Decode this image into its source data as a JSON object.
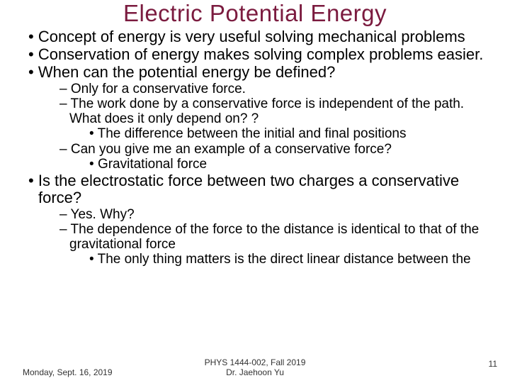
{
  "title": {
    "text": "Electric Potential Energy",
    "color": "#7b1b3f"
  },
  "bullets": {
    "b1": "Concept of energy is very useful solving mechanical problems",
    "b2": "Conservation of energy makes solving complex problems easier.",
    "b3": "When can the potential energy be defined?",
    "b3_1": "Only for a conservative force.",
    "b3_2": "The work done by a conservative force is independent of the path.  What does it only depend on? ?",
    "b3_2_1": "The difference between the initial and final positions",
    "b3_3": "Can you give me an example of a conservative force?",
    "b3_3_1": "Gravitational force",
    "b4": "Is the electrostatic force between two charges a conservative force?",
    "b4_1": "Yes.  Why?",
    "b4_2": "The dependence of the force to the distance is identical to that of the gravitational force",
    "b4_2_1": "The only thing matters is the direct linear distance between the"
  },
  "footer": {
    "date": "Monday, Sept. 16, 2019",
    "course": "PHYS 1444-002, Fall 2019",
    "instructor": "Dr. Jaehoon Yu",
    "page": "11"
  },
  "text_color": "#000000"
}
